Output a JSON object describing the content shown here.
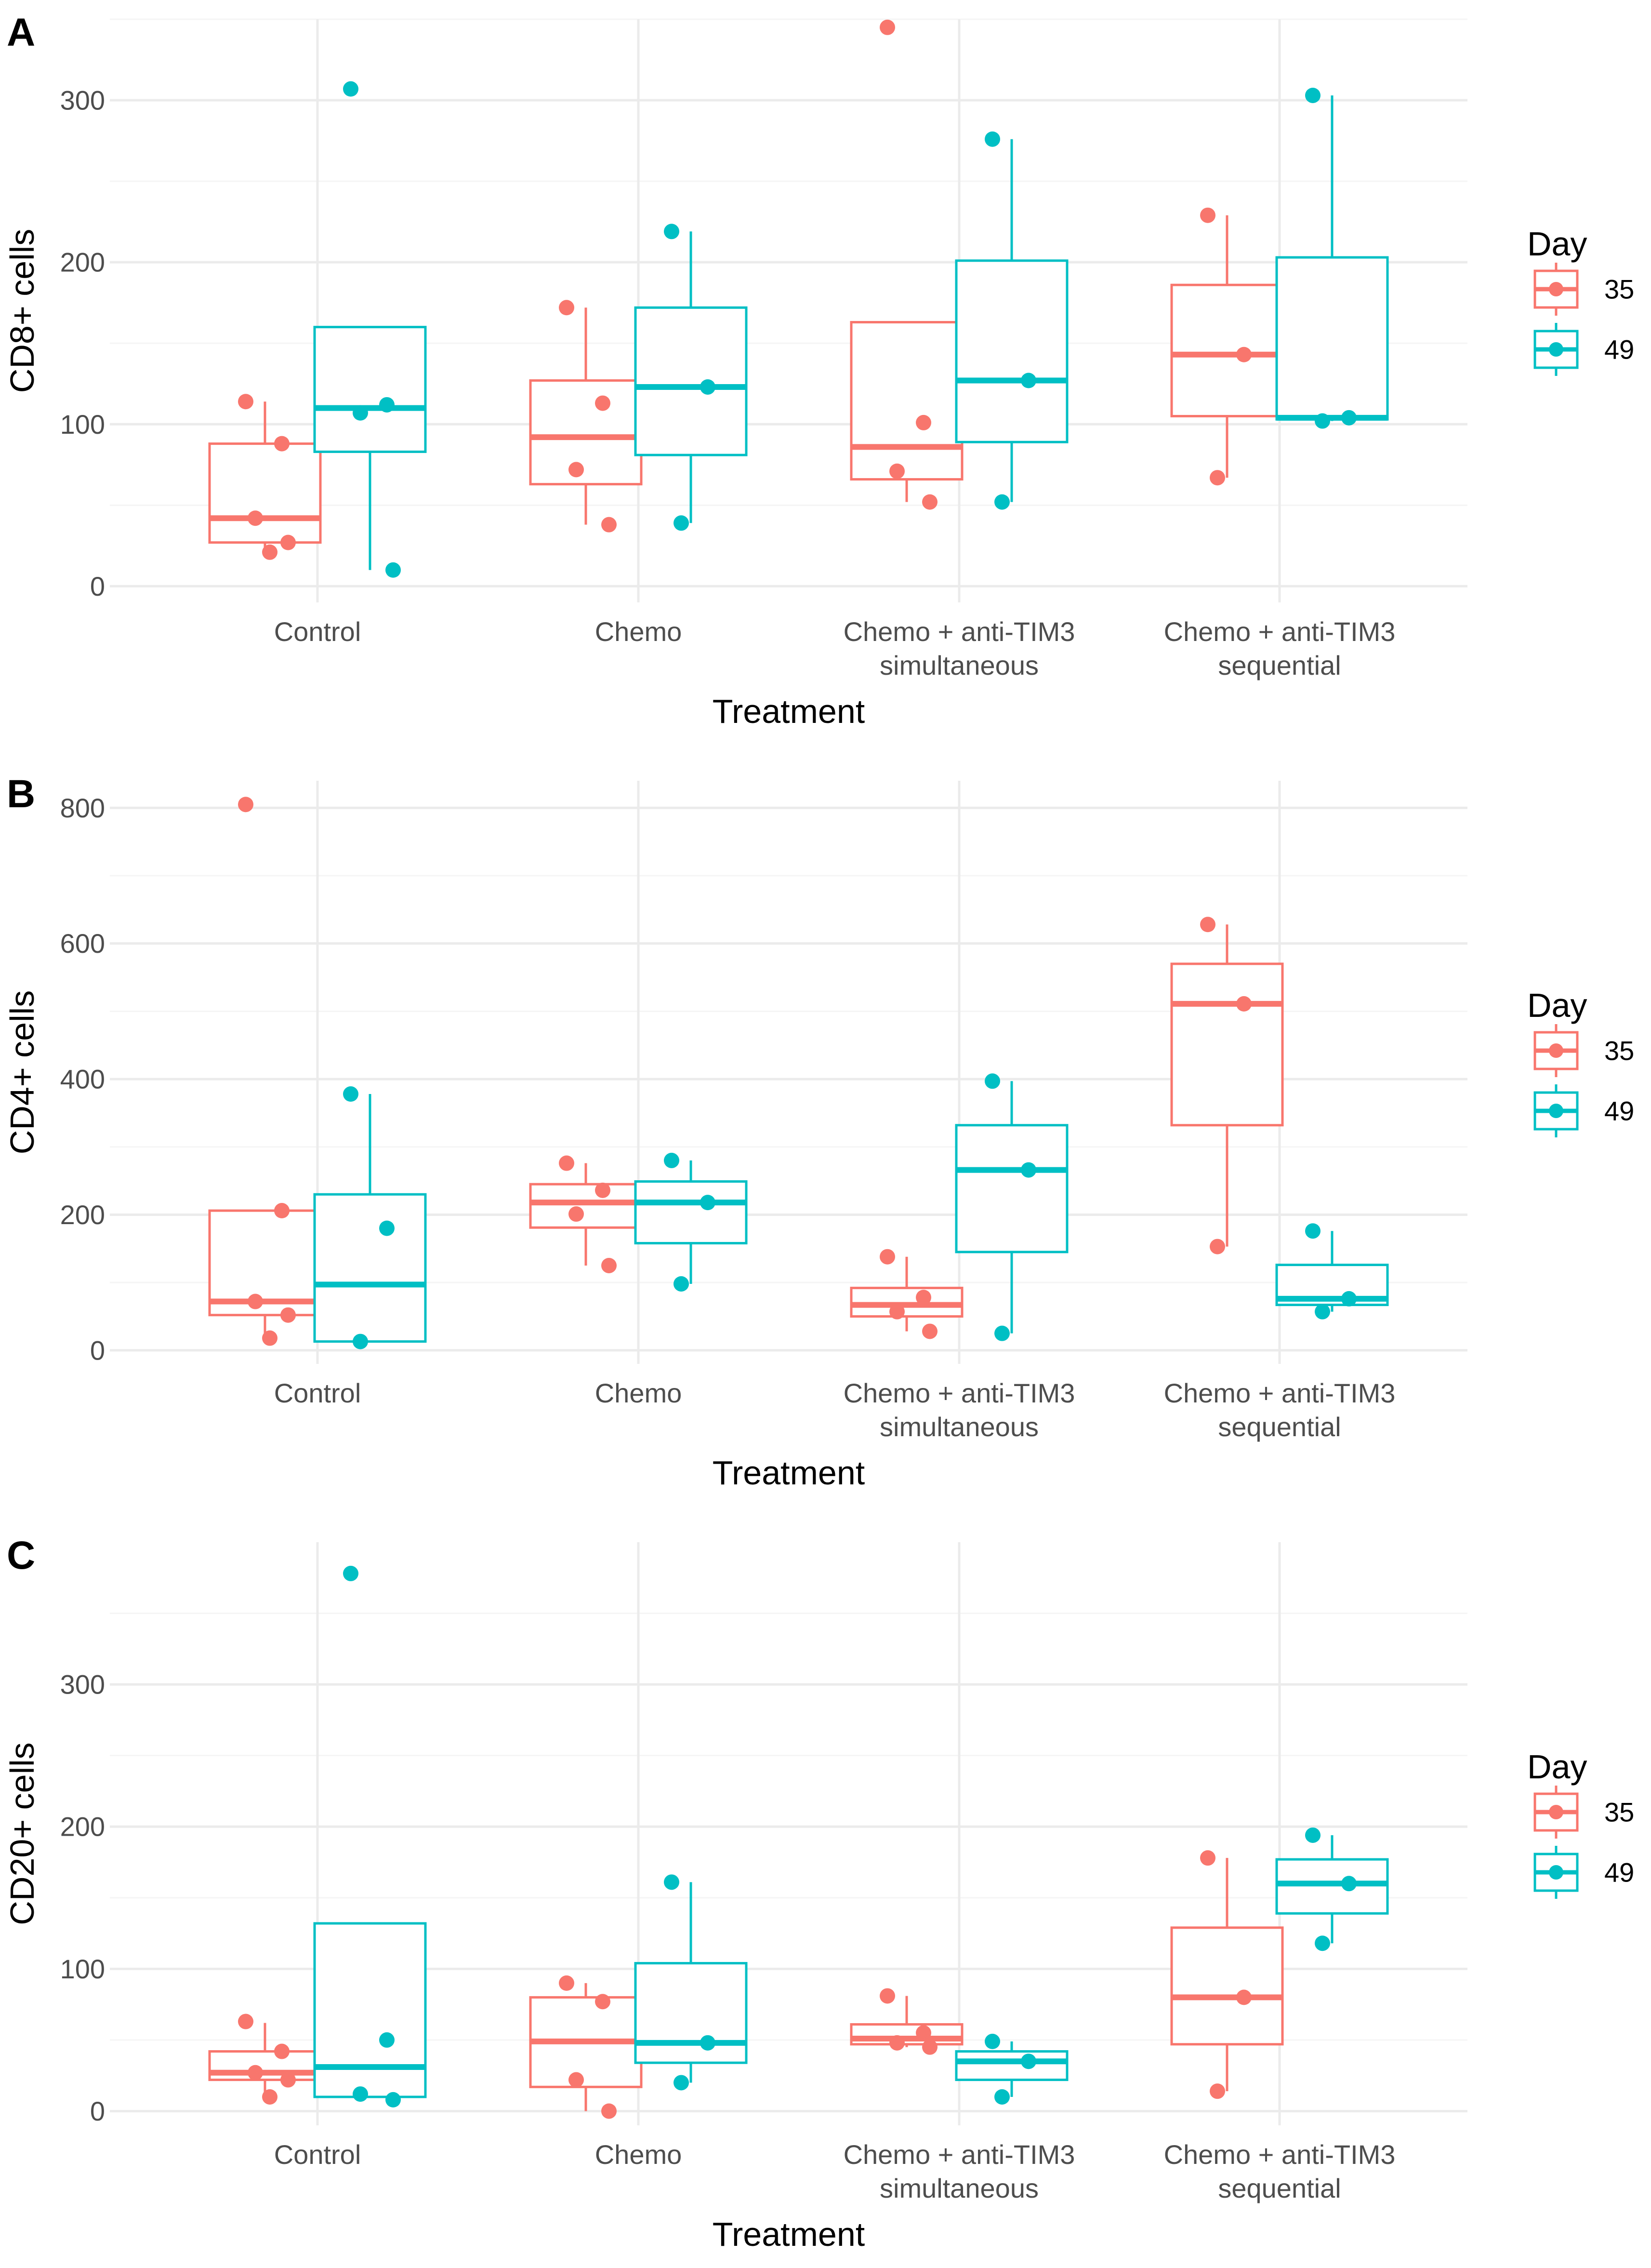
{
  "colors": {
    "day35": "#F8766D",
    "day49": "#00BFC4",
    "grid_major": "#EBEBEB",
    "grid_minor": "#F5F5F5"
  },
  "chart_data": [
    {
      "type": "boxplot",
      "panel": "A",
      "xlabel": "Treatment",
      "ylabel": "CD8+ cells",
      "ylim": [
        -10,
        350
      ],
      "yticks": [
        0,
        100,
        200,
        300
      ],
      "categories": [
        {
          "line1": "Control",
          "line2": ""
        },
        {
          "line1": "Chemo",
          "line2": ""
        },
        {
          "line1": "Chemo + anti-TIM3",
          "line2": "simultaneous"
        },
        {
          "line1": "Chemo + anti-TIM3",
          "line2": "sequential"
        }
      ],
      "legend": {
        "title": "Day",
        "entries": [
          "35",
          "49"
        ]
      },
      "series": [
        {
          "name": "35",
          "color": "#F8766D",
          "boxes": [
            {
              "stats": [
                20,
                27,
                42,
                88,
                114
              ],
              "points": [
                114,
                88,
                42,
                27,
                21
              ]
            },
            {
              "stats": [
                38,
                63,
                92,
                127,
                172
              ],
              "points": [
                172,
                113,
                72,
                38
              ]
            },
            {
              "stats": [
                52,
                66,
                86,
                163,
                163
              ],
              "points": [
                345,
                101,
                71,
                52
              ]
            },
            {
              "stats": [
                67,
                105,
                143,
                186,
                229
              ],
              "points": [
                229,
                143,
                67
              ]
            }
          ]
        },
        {
          "name": "49",
          "color": "#00BFC4",
          "boxes": [
            {
              "stats": [
                10,
                83,
                110,
                160,
                160
              ],
              "points": [
                307,
                112,
                107,
                10
              ]
            },
            {
              "stats": [
                39,
                81,
                123,
                172,
                219
              ],
              "points": [
                219,
                123,
                39
              ]
            },
            {
              "stats": [
                52,
                89,
                127,
                201,
                276
              ],
              "points": [
                276,
                127,
                52
              ]
            },
            {
              "stats": [
                102,
                103,
                104,
                203,
                303
              ],
              "points": [
                303,
                104,
                102
              ]
            }
          ]
        }
      ]
    },
    {
      "type": "boxplot",
      "panel": "B",
      "xlabel": "Treatment",
      "ylabel": "CD4+ cells",
      "ylim": [
        -20,
        840
      ],
      "yticks": [
        0,
        200,
        400,
        600,
        800
      ],
      "categories": [
        {
          "line1": "Control",
          "line2": ""
        },
        {
          "line1": "Chemo",
          "line2": ""
        },
        {
          "line1": "Chemo + anti-TIM3",
          "line2": "simultaneous"
        },
        {
          "line1": "Chemo + anti-TIM3",
          "line2": "sequential"
        }
      ],
      "legend": {
        "title": "Day",
        "entries": [
          "35",
          "49"
        ]
      },
      "series": [
        {
          "name": "35",
          "color": "#F8766D",
          "boxes": [
            {
              "stats": [
                18,
                52,
                72,
                206,
                206
              ],
              "points": [
                805,
                206,
                72,
                52,
                18
              ]
            },
            {
              "stats": [
                125,
                181,
                218,
                245,
                276
              ],
              "points": [
                276,
                236,
                201,
                125
              ]
            },
            {
              "stats": [
                28,
                50,
                67,
                92,
                138
              ],
              "points": [
                138,
                78,
                57,
                28
              ]
            },
            {
              "stats": [
                153,
                332,
                511,
                570,
                628
              ],
              "points": [
                628,
                511,
                153
              ]
            }
          ]
        },
        {
          "name": "49",
          "color": "#00BFC4",
          "boxes": [
            {
              "stats": [
                13,
                13,
                97,
                230,
                378
              ],
              "points": [
                378,
                180,
                13
              ]
            },
            {
              "stats": [
                98,
                158,
                218,
                249,
                280
              ],
              "points": [
                280,
                218,
                98
              ]
            },
            {
              "stats": [
                25,
                145,
                266,
                332,
                397
              ],
              "points": [
                397,
                266,
                25
              ]
            },
            {
              "stats": [
                57,
                67,
                76,
                126,
                176
              ],
              "points": [
                176,
                76,
                57
              ]
            }
          ]
        }
      ]
    },
    {
      "type": "boxplot",
      "panel": "C",
      "xlabel": "Treatment",
      "ylabel": "CD20+ cells",
      "ylim": [
        -10,
        400
      ],
      "yticks": [
        0,
        100,
        200,
        300
      ],
      "categories": [
        {
          "line1": "Control",
          "line2": ""
        },
        {
          "line1": "Chemo",
          "line2": ""
        },
        {
          "line1": "Chemo + anti-TIM3",
          "line2": "simultaneous"
        },
        {
          "line1": "Chemo + anti-TIM3",
          "line2": "sequential"
        }
      ],
      "legend": {
        "title": "Day",
        "entries": [
          "35",
          "49"
        ]
      },
      "series": [
        {
          "name": "35",
          "color": "#F8766D",
          "boxes": [
            {
              "stats": [
                9,
                22,
                27,
                42,
                62
              ],
              "points": [
                63,
                42,
                27,
                22,
                10
              ]
            },
            {
              "stats": [
                0,
                17,
                49,
                80,
                90
              ],
              "points": [
                90,
                77,
                22,
                0
              ]
            },
            {
              "stats": [
                45,
                47,
                51,
                61,
                81
              ],
              "points": [
                81,
                55,
                48,
                45
              ]
            },
            {
              "stats": [
                14,
                47,
                80,
                129,
                178
              ],
              "points": [
                178,
                80,
                14
              ]
            }
          ]
        },
        {
          "name": "49",
          "color": "#00BFC4",
          "boxes": [
            {
              "stats": [
                10,
                10,
                31,
                132,
                132
              ],
              "points": [
                378,
                50,
                12,
                8
              ]
            },
            {
              "stats": [
                20,
                34,
                48,
                104,
                161
              ],
              "points": [
                161,
                48,
                20
              ]
            },
            {
              "stats": [
                10,
                22,
                35,
                42,
                49
              ],
              "points": [
                49,
                35,
                10
              ]
            },
            {
              "stats": [
                118,
                139,
                160,
                177,
                194
              ],
              "points": [
                194,
                160,
                118
              ]
            }
          ]
        }
      ]
    }
  ]
}
